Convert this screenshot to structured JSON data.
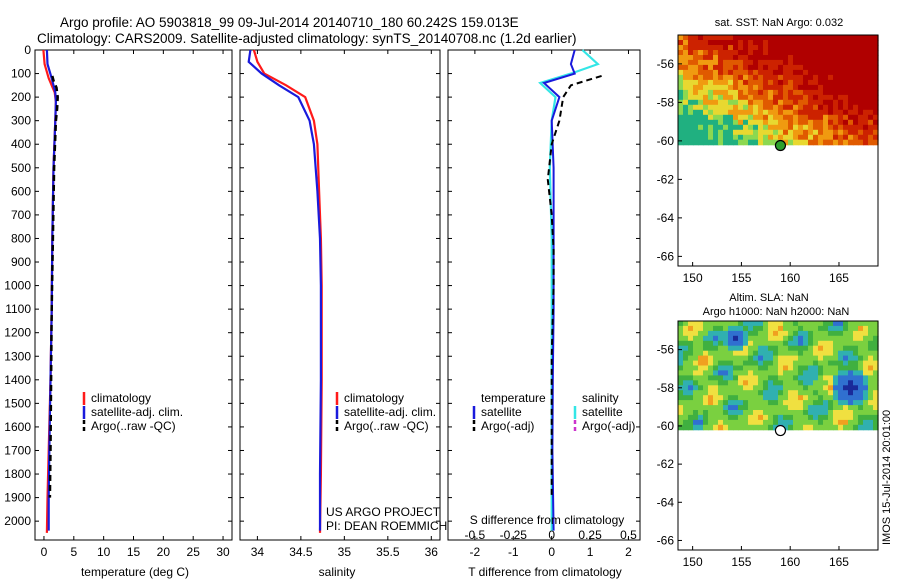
{
  "header": {
    "line1": "Argo profile: AO 5903818_99 09-Jul-2014 20140710_180 60.242S 159.013E",
    "line2": "Climatology: CARS2009. Satellite-adjusted climatology: synTS_20140708.nc (1.2d earlier)"
  },
  "colors": {
    "climatology": "#ff1a1a",
    "satellite": "#1a1adc",
    "argo": "#000000",
    "satellite_salinity": "#33e6e6",
    "argo_salinity": "#cc33cc"
  },
  "depth_axis": {
    "ticks": [
      0,
      100,
      200,
      300,
      400,
      500,
      600,
      700,
      800,
      900,
      1000,
      1100,
      1200,
      1300,
      1400,
      1500,
      1600,
      1700,
      1800,
      1900,
      2000
    ],
    "ylim": [
      0,
      2080
    ],
    "inverted": true
  },
  "panels": {
    "temperature": {
      "xlabel": "temperature (deg C)",
      "xlim": [
        -1.5,
        31.5
      ],
      "xticks": [
        0,
        5,
        10,
        15,
        20,
        25,
        30
      ],
      "legend": [
        "climatology",
        "satellite-adj. clim.",
        "Argo(..raw -QC)"
      ]
    },
    "salinity": {
      "xlabel": "salinity",
      "xlim": [
        33.8,
        36.1
      ],
      "xticks": [
        "34",
        "34.5",
        "35",
        "35.5",
        "36"
      ],
      "legend": [
        "climatology",
        "satellite-adj. clim.",
        "Argo(..raw -QC)"
      ],
      "credit1": "US ARGO PROJECT",
      "credit2": "PI: DEAN ROEMMICH"
    },
    "difference": {
      "xlabel": "T difference from climatology",
      "s_axis_title": "S difference from climatology",
      "t_ticks": [
        "-2",
        "-1",
        "0",
        "1",
        "2"
      ],
      "s_ticks": [
        "-0.5",
        "-0.25",
        "0",
        "0.25",
        "0.5"
      ],
      "legend_t_title": "temperature",
      "legend_s_title": "salinity",
      "legend_t": [
        "satellite",
        "Argo(-adj)"
      ],
      "legend_s": [
        "satellite",
        "Argo(-adj)"
      ]
    }
  },
  "maps": {
    "sst": {
      "title": "sat. SST: NaN Argo: 0.032",
      "lon_ticks": [
        "150",
        "155",
        "160",
        "165"
      ],
      "lat_ticks": [
        "-56",
        "-58",
        "-60",
        "-62",
        "-64",
        "-66"
      ],
      "float_lon": 159.0,
      "float_lat": -60.24
    },
    "sla": {
      "title1": "Altim. SLA: NaN",
      "title2": "Argo h1000: NaN h2000: NaN",
      "lon_ticks": [
        "150",
        "155",
        "160",
        "165"
      ],
      "lat_ticks": [
        "-56",
        "-58",
        "-60",
        "-62",
        "-64",
        "-66"
      ],
      "float_lon": 159.0,
      "float_lat": -60.24
    }
  },
  "stamp": "IMOS 15-Jul-2014 20:01:00",
  "chart_data": [
    {
      "type": "line",
      "panel": "temperature",
      "xlabel": "temperature (deg C)",
      "ylabel": "",
      "xlim": [
        -1.5,
        31.5
      ],
      "ylim": [
        0,
        2080
      ],
      "series": [
        {
          "name": "climatology",
          "x": [
            -0.1,
            0.1,
            0.8,
            1.8,
            2.0,
            1.9,
            1.6,
            1.4,
            1.3,
            1.1,
            0.8,
            0.6,
            0.5
          ],
          "y": [
            0,
            60,
            120,
            180,
            220,
            300,
            500,
            800,
            1100,
            1400,
            1700,
            1900,
            2050
          ]
        },
        {
          "name": "satellite-adj. clim.",
          "x": [
            0.5,
            0.6,
            1.3,
            1.9,
            2.0,
            1.9,
            1.6,
            1.4,
            1.3,
            1.1,
            0.9,
            0.8,
            0.8
          ],
          "y": [
            0,
            60,
            120,
            180,
            220,
            300,
            500,
            800,
            1100,
            1400,
            1700,
            1900,
            2040
          ]
        },
        {
          "name": "Argo(..raw -QC)",
          "x": [
            1.4,
            1.6,
            2.1,
            2.3,
            2.2,
            2.0,
            1.7,
            1.5,
            1.3,
            1.2,
            1.1,
            1.0
          ],
          "y": [
            110,
            130,
            160,
            200,
            250,
            300,
            500,
            800,
            1100,
            1400,
            1700,
            1900
          ]
        }
      ]
    },
    {
      "type": "line",
      "panel": "salinity",
      "xlabel": "salinity",
      "ylabel": "",
      "xlim": [
        33.8,
        36.1
      ],
      "ylim": [
        0,
        2080
      ],
      "series": [
        {
          "name": "climatology",
          "x": [
            33.96,
            34.0,
            34.08,
            34.33,
            34.55,
            34.65,
            34.69,
            34.71,
            34.73,
            34.74,
            34.74,
            34.73,
            34.72
          ],
          "y": [
            0,
            50,
            100,
            150,
            200,
            300,
            400,
            600,
            800,
            1000,
            1400,
            1800,
            2050
          ]
        },
        {
          "name": "satellite-adj. clim.",
          "x": [
            33.92,
            33.9,
            34.05,
            34.25,
            34.47,
            34.6,
            34.65,
            34.69,
            34.72,
            34.73,
            34.73,
            34.72,
            34.72
          ],
          "y": [
            0,
            50,
            100,
            150,
            200,
            300,
            400,
            600,
            800,
            1000,
            1400,
            1800,
            2040
          ]
        },
        {
          "name": "Argo(..raw -QC)",
          "x": [],
          "y": []
        }
      ]
    },
    {
      "type": "line",
      "panel": "difference",
      "xlabel": "T difference from climatology",
      "ylabel": "",
      "xlim": [
        -2.7,
        2.3
      ],
      "ylim": [
        0,
        2080
      ],
      "series": [
        {
          "name": "temperature satellite",
          "x": [
            0.6,
            0.5,
            0.6,
            -0.2,
            0.2,
            0.0,
            0.05,
            0.05,
            0.05,
            0.03,
            0.02,
            0.05
          ],
          "y": [
            0,
            60,
            100,
            140,
            200,
            300,
            500,
            800,
            1100,
            1400,
            1700,
            2040
          ]
        },
        {
          "name": "temperature Argo(-adj)",
          "x": [
            1.3,
            0.5,
            0.3,
            0.2,
            0.0,
            -0.1,
            0.0,
            0.05,
            0.05,
            0.0,
            0.0,
            0.0
          ],
          "y": [
            110,
            150,
            200,
            300,
            400,
            550,
            700,
            850,
            1000,
            1300,
            1600,
            1900
          ]
        },
        {
          "name": "salinity satellite",
          "x": [
            0.8,
            1.2,
            0.5,
            -0.3,
            0.1,
            0.0,
            -0.05,
            0.0,
            0.0,
            0.0,
            0.0,
            0.0
          ],
          "y": [
            0,
            60,
            100,
            140,
            200,
            300,
            500,
            800,
            1100,
            1400,
            1700,
            2040
          ]
        },
        {
          "name": "salinity Argo(-adj)",
          "x": [],
          "y": []
        }
      ]
    }
  ]
}
